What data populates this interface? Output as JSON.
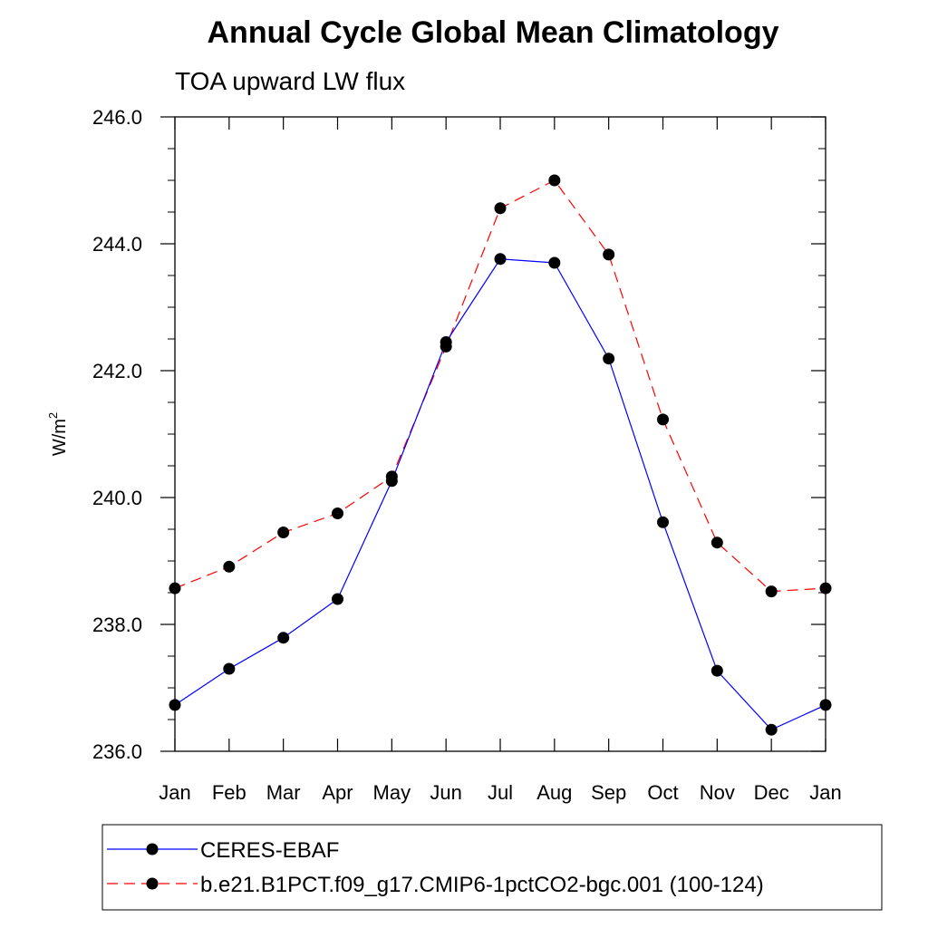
{
  "chart_data": {
    "type": "line",
    "title": "Annual Cycle Global Mean Climatology",
    "subtitle": "TOA upward LW flux",
    "ylabel": "W/m",
    "ylabel_sup": "2",
    "xlabel": "",
    "categories": [
      "Jan",
      "Feb",
      "Mar",
      "Apr",
      "May",
      "Jun",
      "Jul",
      "Aug",
      "Sep",
      "Oct",
      "Nov",
      "Dec",
      "Jan"
    ],
    "ylim": [
      236.0,
      246.0
    ],
    "yticks": [
      "236.0",
      "238.0",
      "240.0",
      "242.0",
      "244.0",
      "246.0"
    ],
    "ytick_values": [
      236,
      238,
      240,
      242,
      244,
      246
    ],
    "series": [
      {
        "name": "CERES-EBAF",
        "color": "#0000ff",
        "style": "solid",
        "values": [
          236.73,
          237.3,
          237.79,
          238.4,
          240.26,
          242.45,
          243.76,
          243.7,
          242.19,
          239.61,
          237.27,
          236.34,
          236.73
        ]
      },
      {
        "name": "b.e21.B1PCT.f09_g17.CMIP6-1pctCO2-bgc.001 (100-124)",
        "color": "#ff0000",
        "style": "dashed",
        "values": [
          238.57,
          238.91,
          239.45,
          239.75,
          240.33,
          242.38,
          244.56,
          245.0,
          243.83,
          241.23,
          239.29,
          238.52,
          238.57
        ]
      }
    ],
    "legend_position": "bottom",
    "grid": false
  }
}
